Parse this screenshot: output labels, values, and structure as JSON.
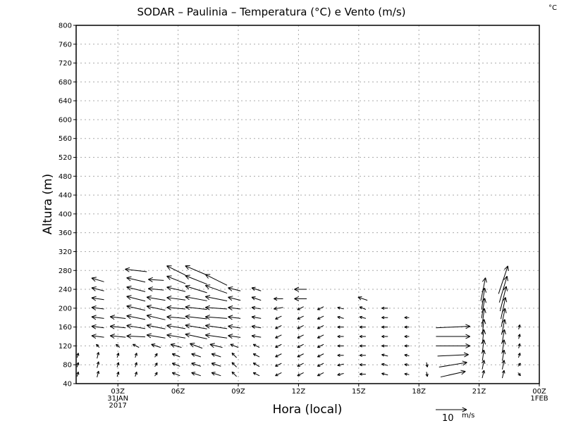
{
  "chart_data": {
    "type": "vector-field",
    "title": "SODAR – Paulinia – Temperatura (°C) e Vento (m/s)",
    "corner_label": "°C",
    "xlabel": "Hora (local)",
    "ylabel": "Altura (m)",
    "xlim": [
      0.92,
      24
    ],
    "ylim": [
      40,
      800
    ],
    "yticks": [
      40,
      80,
      120,
      160,
      200,
      240,
      280,
      320,
      360,
      400,
      440,
      480,
      520,
      560,
      600,
      640,
      680,
      720,
      760,
      800
    ],
    "xticks": [
      {
        "hour": 3,
        "label": "03Z",
        "sub1": "31JAN",
        "sub2": "2017"
      },
      {
        "hour": 6,
        "label": "06Z"
      },
      {
        "hour": 9,
        "label": "09Z"
      },
      {
        "hour": 12,
        "label": "12Z"
      },
      {
        "hour": 15,
        "label": "15Z"
      },
      {
        "hour": 18,
        "label": "18Z"
      },
      {
        "hour": 21,
        "label": "21Z"
      },
      {
        "hour": 24,
        "label": "00Z",
        "sub1": "1FEB"
      }
    ],
    "grid": true,
    "reference_vector": {
      "value": 10,
      "label": "10",
      "unit": "m/s"
    },
    "height_step": 20,
    "columns": [
      {
        "hour": 1.0,
        "z0": 60,
        "u": [
          0.4,
          0.4,
          0.4
        ],
        "v": [
          1.5,
          1.5,
          1.5
        ]
      },
      {
        "hour": 2.0,
        "z0": 60,
        "u": [
          0.5,
          0.5,
          0.5,
          -1,
          -4,
          -4,
          -4,
          -4,
          -4,
          -4,
          -4
        ],
        "v": [
          2,
          2,
          2,
          1,
          0.5,
          0.5,
          0.5,
          0.5,
          0.6,
          1,
          1.2
        ]
      },
      {
        "hour": 3.0,
        "z0": 60,
        "u": [
          0.5,
          0.5,
          0.5,
          -1.2,
          -5,
          -5,
          -5
        ],
        "v": [
          1.5,
          1.5,
          1.5,
          1,
          0.5,
          0.5,
          0.6
        ]
      },
      {
        "hour": 3.9,
        "z0": 60,
        "u": [
          0.5,
          0.5,
          0.5,
          -2,
          -6,
          -6,
          -6,
          -6,
          -6,
          -6,
          -6,
          -7
        ],
        "v": [
          1.5,
          1.5,
          1.5,
          1,
          0.3,
          1,
          1.2,
          1.4,
          1.5,
          1.5,
          1.4,
          0.8
        ]
      },
      {
        "hour": 4.9,
        "z0": 60,
        "u": [
          0.8,
          0.8,
          0.8,
          -3,
          -6,
          -6,
          -6,
          -6,
          -6,
          -5,
          -5
        ],
        "v": [
          1.2,
          1.2,
          1.2,
          1,
          1,
          1.2,
          1.4,
          1.3,
          1,
          0.5,
          0.3
        ]
      },
      {
        "hour": 5.9,
        "z0": 60,
        "u": [
          -2.5,
          -2.5,
          -2.5,
          -3.5,
          -6,
          -6,
          -6,
          -6,
          -6,
          -6,
          -6,
          -6
        ],
        "v": [
          1,
          1,
          1,
          1,
          1,
          1,
          0.5,
          0.5,
          0.8,
          1.4,
          2.4,
          3
        ]
      },
      {
        "hour": 6.9,
        "z0": 60,
        "u": [
          -3,
          -3,
          -3,
          -4,
          -7,
          -7,
          -7,
          -7,
          -7,
          -7,
          -7,
          -7
        ],
        "v": [
          1,
          1,
          1,
          1.5,
          1.5,
          1.2,
          0.8,
          0.8,
          1.3,
          2.2,
          2.8,
          3
        ]
      },
      {
        "hour": 7.9,
        "z0": 60,
        "u": [
          -3,
          -3,
          -3,
          -4,
          -7,
          -7,
          -7,
          -7,
          -7,
          -7,
          -7
        ],
        "v": [
          1,
          1,
          1,
          1,
          1,
          1,
          0.5,
          0.5,
          1.4,
          2.5,
          3.5
        ]
      },
      {
        "hour": 8.8,
        "z0": 60,
        "u": [
          -1.5,
          -1.5,
          -1.5,
          -2.5,
          -4,
          -4,
          -4,
          -4,
          -4,
          -4
        ],
        "v": [
          1.5,
          1.5,
          1.5,
          1,
          0.6,
          0.6,
          0.5,
          0.5,
          1,
          1
        ]
      },
      {
        "hour": 9.9,
        "z0": 60,
        "u": [
          -2,
          -2,
          -2,
          -2,
          -3,
          -3,
          -3,
          -3,
          -3,
          -3
        ],
        "v": [
          1,
          1.2,
          1,
          1,
          0.5,
          0.5,
          0.5,
          0.5,
          1,
          1
        ]
      },
      {
        "hour": 11.0,
        "z0": 60,
        "u": [
          -2,
          -2,
          -2,
          -2,
          -2,
          -2,
          -2,
          -3,
          -3
        ],
        "v": [
          -1,
          -1,
          -1,
          -1,
          -1,
          -1,
          -1,
          -0.5,
          0
        ]
      },
      {
        "hour": 12.1,
        "z0": 60,
        "u": [
          -2,
          -2,
          -2,
          -2,
          -2,
          -2,
          -2,
          -2,
          -4,
          -4
        ],
        "v": [
          -1,
          -1,
          -1,
          -1,
          -1,
          -1,
          -1,
          -1,
          0,
          0
        ]
      },
      {
        "hour": 13.1,
        "z0": 60,
        "u": [
          -2,
          -2,
          -2,
          -2,
          -2,
          -2,
          -2,
          -2
        ],
        "v": [
          -1,
          -1,
          -1,
          -1,
          -1,
          -1,
          -1,
          -1
        ]
      },
      {
        "hour": 14.1,
        "z0": 60,
        "u": [
          -2,
          -2,
          -2,
          -2,
          -2,
          -2,
          -2,
          -2
        ],
        "v": [
          -0.5,
          -0.5,
          0,
          0,
          0,
          0,
          0.5,
          0.5
        ]
      },
      {
        "hour": 15.2,
        "z0": 60,
        "u": [
          -2,
          -2,
          -2,
          -2,
          -2,
          -2,
          -2,
          -2,
          -3
        ],
        "v": [
          0,
          0,
          0,
          0,
          0,
          0,
          0.5,
          0.8,
          1
        ]
      },
      {
        "hour": 16.3,
        "z0": 60,
        "u": [
          -2,
          -2,
          -2,
          -2,
          -2,
          -2,
          -2,
          -2
        ],
        "v": [
          0.5,
          0.5,
          0.5,
          0,
          0,
          0,
          0,
          0
        ]
      },
      {
        "hour": 17.4,
        "z0": 60,
        "u": [
          -1.5,
          -1.5,
          -1.5,
          -1.5,
          -1.5,
          -1.5,
          -1.5
        ],
        "v": [
          0.3,
          0.3,
          0.3,
          0,
          0,
          0,
          0
        ]
      },
      {
        "hour": 18.4,
        "z0": 60,
        "u": [
          0.3,
          0.3
        ],
        "v": [
          -1.5,
          -1.5
        ]
      },
      {
        "hour": 19.7,
        "z0": 60,
        "u": [
          8,
          9,
          10,
          11,
          11,
          11
        ],
        "v": [
          1.8,
          1.5,
          0.5,
          0,
          0,
          0.5
        ]
      },
      {
        "hour": 21.2,
        "z0": 60,
        "u": [
          0.6,
          0.6,
          0.5,
          0.5,
          0.5,
          0.6,
          0.8,
          1,
          1,
          1.5
        ],
        "v": [
          2.5,
          3,
          3.5,
          4,
          4.5,
          5,
          6,
          6.5,
          7,
          7.5
        ]
      },
      {
        "hour": 22.2,
        "z0": 60,
        "u": [
          0.6,
          0.6,
          0.6,
          0.6,
          0.8,
          1,
          1.2,
          1.5,
          2,
          2.5,
          3
        ],
        "v": [
          2.5,
          3,
          3.5,
          4,
          4.5,
          5,
          6,
          7,
          8,
          8.5,
          9
        ]
      },
      {
        "hour": 23.0,
        "z0": 60,
        "u": [
          0.8,
          0.8,
          0.5,
          0.4,
          0.4,
          0.4
        ],
        "v": [
          -1,
          1,
          1.5,
          1.5,
          1.5,
          1.5
        ]
      }
    ]
  }
}
